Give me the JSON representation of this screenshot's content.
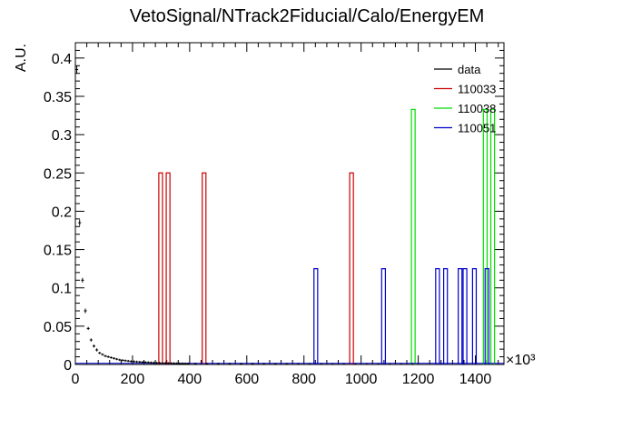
{
  "chart_data": {
    "type": "histogram",
    "title": "VetoSignal/NTrack2Fiducial/Calo/EnergyEM",
    "xlabel": "",
    "ylabel": "A.U.",
    "x_multiplier_label": "×10³",
    "x_unit_scale": 1000,
    "xlim": [
      0,
      1500
    ],
    "ylim": [
      0,
      0.42
    ],
    "x_ticks": [
      0,
      200,
      400,
      600,
      800,
      1000,
      1200,
      1400
    ],
    "y_ticks": [
      0,
      0.05,
      0.1,
      0.15,
      0.2,
      0.25,
      0.3,
      0.35,
      0.4
    ],
    "y_tick_labels": [
      "0",
      "0.05",
      "0.1",
      "0.15",
      "0.2",
      "0.25",
      "0.3",
      "0.35",
      "0.4"
    ],
    "legend_position": "top-right",
    "legend": [
      "data",
      "110033",
      "110038",
      "110051"
    ],
    "series": [
      {
        "name": "data",
        "style": "markers",
        "color": "#000000",
        "bin_width": 10,
        "x": [
          5,
          15,
          25,
          35,
          45,
          55,
          65,
          75,
          85,
          95,
          105,
          115,
          125,
          135,
          145,
          155,
          165,
          175,
          185,
          195,
          205,
          215,
          225,
          235,
          245,
          255,
          265,
          275,
          285,
          295,
          305,
          315,
          325,
          335,
          345,
          355,
          365,
          375,
          385,
          395,
          420,
          460,
          500,
          540,
          580,
          620,
          660,
          700,
          740,
          780,
          820,
          860,
          900,
          940,
          980,
          1020,
          1060,
          1100,
          1140,
          1180
        ],
        "y": [
          0.385,
          0.185,
          0.11,
          0.07,
          0.047,
          0.032,
          0.024,
          0.019,
          0.015,
          0.013,
          0.011,
          0.01,
          0.009,
          0.008,
          0.007,
          0.006,
          0.0055,
          0.005,
          0.0045,
          0.004,
          0.0038,
          0.0035,
          0.0033,
          0.003,
          0.0028,
          0.0026,
          0.0024,
          0.0022,
          0.002,
          0.0019,
          0.0018,
          0.0017,
          0.0016,
          0.0015,
          0.0014,
          0.0013,
          0.0012,
          0.0011,
          0.001,
          0.001,
          0.0009,
          0.0008,
          0.0007,
          0.0007,
          0.0006,
          0.0006,
          0.0005,
          0.0005,
          0.0004,
          0.0004,
          0.0004,
          0.0003,
          0.0003,
          0.0003,
          0.0003,
          0.0002,
          0.0002,
          0.0002,
          0.0002,
          0.0002
        ],
        "yerr": [
          0.005,
          0.004,
          0.003,
          0.003,
          0.002,
          0.002,
          0.002,
          0.002,
          0.0015,
          0.0015,
          0.0015,
          0.0015,
          0.0015,
          0.0015,
          0.0015,
          0.0015,
          0.0015,
          0.0015,
          0.0015,
          0.0015,
          0.0015,
          0.0015,
          0.0015,
          0.0015,
          0.0015,
          0.0015,
          0.0015,
          0.0015,
          0.0015,
          0.0015,
          0.0015,
          0.0015,
          0.0015,
          0.0015,
          0.0015,
          0.0015,
          0.0015,
          0.0015,
          0.0015,
          0.0015,
          0.0015,
          0.0015,
          0.0015,
          0.0015,
          0.0015,
          0.0015,
          0.0015,
          0.0015,
          0.0015,
          0.0015,
          0.0015,
          0.0015,
          0.0015,
          0.0015,
          0.0015,
          0.0015,
          0.0015,
          0.0015,
          0.0015,
          0.0015
        ]
      },
      {
        "name": "110033",
        "style": "step",
        "color": "#cc0000",
        "bins": [
          [
            292,
            305,
            0.25
          ],
          [
            318,
            331,
            0.25
          ],
          [
            444,
            457,
            0.25
          ],
          [
            960,
            973,
            0.25
          ]
        ]
      },
      {
        "name": "110038",
        "style": "step",
        "color": "#00dd00",
        "bins": [
          [
            1176,
            1189,
            0.333
          ],
          [
            1428,
            1441,
            0.333
          ],
          [
            1454,
            1467,
            0.333
          ]
        ]
      },
      {
        "name": "110051",
        "style": "step",
        "color": "#0000cc",
        "bins": [
          [
            835,
            848,
            0.125
          ],
          [
            1072,
            1085,
            0.125
          ],
          [
            1261,
            1274,
            0.125
          ],
          [
            1289,
            1302,
            0.125
          ],
          [
            1340,
            1353,
            0.125
          ],
          [
            1357,
            1370,
            0.125
          ],
          [
            1390,
            1403,
            0.125
          ],
          [
            1434,
            1447,
            0.125
          ]
        ],
        "low_values": [
          [
            0,
            1500,
            0.0015
          ]
        ]
      }
    ]
  }
}
